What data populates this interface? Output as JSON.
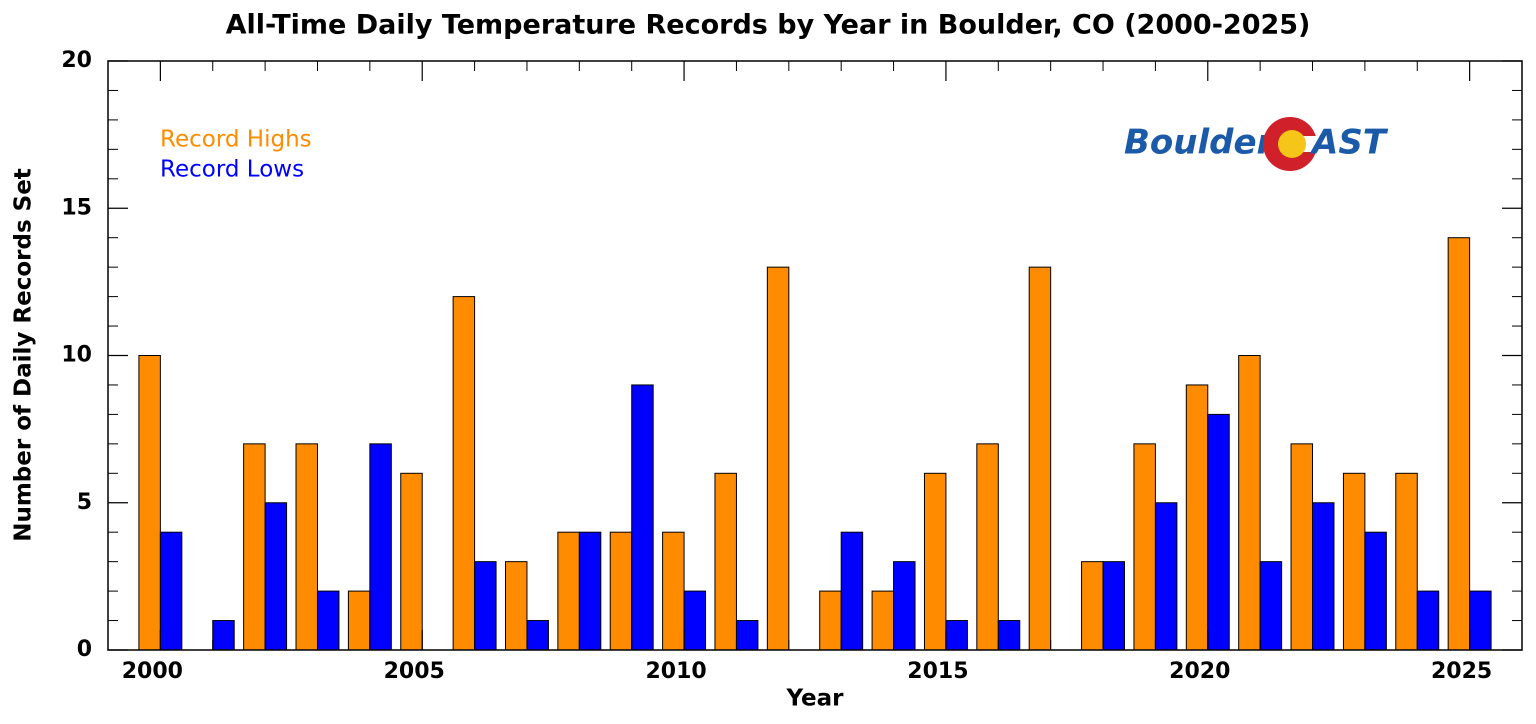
{
  "chart_data": {
    "type": "bar",
    "title": "All-Time Daily Temperature Records by Year in Boulder, CO (2000-2025)",
    "x_label": "Year",
    "y_label": "Number of Daily Records Set",
    "x": [
      2000,
      2001,
      2002,
      2003,
      2004,
      2005,
      2006,
      2007,
      2008,
      2009,
      2010,
      2011,
      2012,
      2013,
      2014,
      2015,
      2016,
      2017,
      2018,
      2019,
      2020,
      2021,
      2022,
      2023,
      2024,
      2025
    ],
    "series": [
      {
        "name": "Record Highs",
        "color": "#ff8c00",
        "values": [
          10,
          0,
          7,
          7,
          2,
          6,
          12,
          3,
          4,
          4,
          4,
          6,
          13,
          2,
          2,
          6,
          7,
          13,
          3,
          7,
          9,
          10,
          7,
          6,
          6,
          14
        ]
      },
      {
        "name": "Record Lows",
        "color": "#0000ff",
        "values": [
          4,
          1,
          5,
          2,
          7,
          0,
          3,
          1,
          4,
          9,
          2,
          1,
          0,
          4,
          3,
          1,
          1,
          0,
          3,
          5,
          8,
          3,
          5,
          4,
          2,
          2
        ]
      }
    ],
    "xlim": [
      1999,
      2026
    ],
    "xticks": [
      2000,
      2005,
      2010,
      2015,
      2020,
      2025
    ],
    "ylim": [
      0,
      20
    ],
    "yticks": [
      0,
      5,
      10,
      15,
      20
    ],
    "legend": "upper left",
    "grid": false,
    "annotations": [
      "Boulder",
      "AST"
    ]
  }
}
